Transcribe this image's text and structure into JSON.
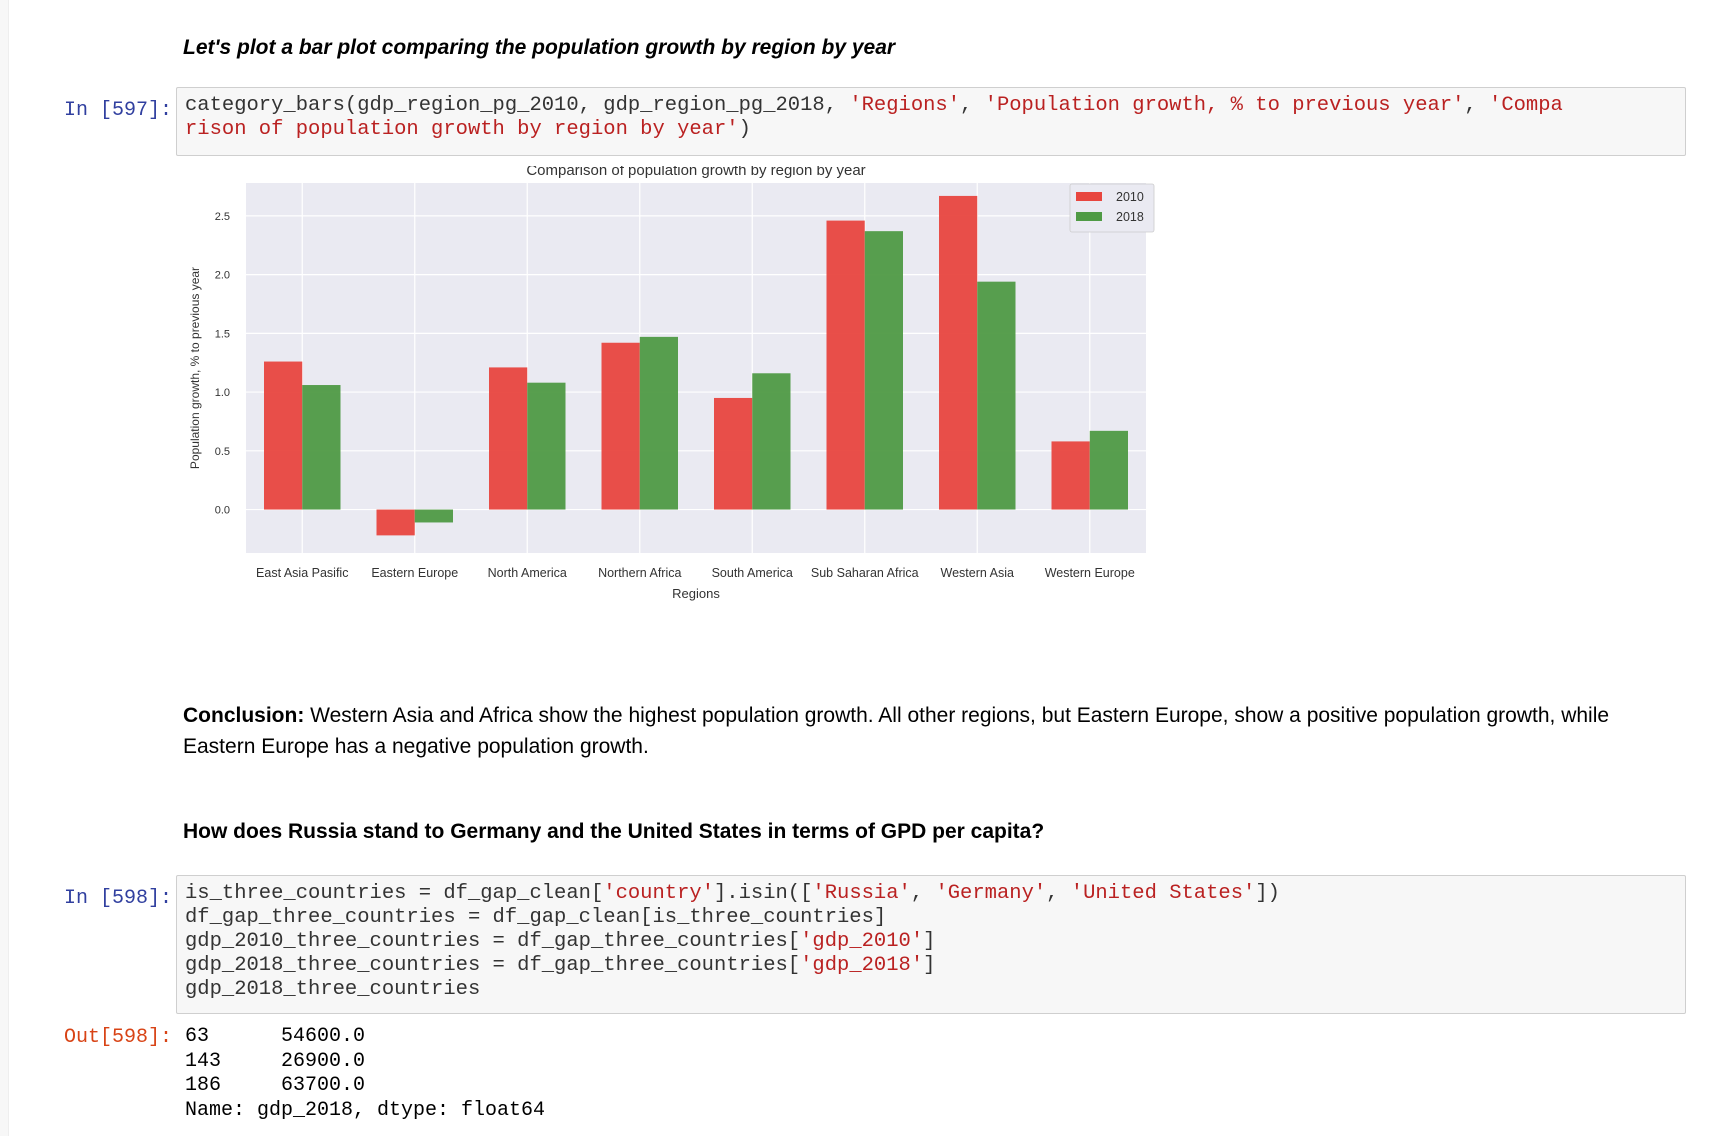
{
  "markdown": {
    "plot_heading": "Let's plot a bar plot comparing the population growth by region by year",
    "conclusion_label": "Conclusion:",
    "conclusion_text": " Western Asia and Africa show the highest population growth. All other regions, but Eastern Europe, show a positive population growth, while Eastern Europe has a negative population growth.",
    "question_heading": "How does Russia stand to Germany and the United States in terms of GPD per capita?"
  },
  "cell1": {
    "prompt": "In [597]:",
    "code_lines": [
      [
        {
          "t": "category_bars(gdp_region_pg_2010, gdp_region_pg_2018, "
        },
        {
          "t": "'Regions'",
          "s": true
        },
        {
          "t": ", "
        },
        {
          "t": "'Population growth, % to previous year'",
          "s": true
        },
        {
          "t": ", "
        },
        {
          "t": "'Compa",
          "s": true
        }
      ],
      [
        {
          "t": "rison of population growth by region by year'",
          "s": true
        },
        {
          "t": ")"
        }
      ]
    ]
  },
  "cell2": {
    "prompt": "In [598]:",
    "code_lines": [
      [
        {
          "t": "is_three_countries = df_gap_clean["
        },
        {
          "t": "'country'",
          "s": true
        },
        {
          "t": "].isin(["
        },
        {
          "t": "'Russia'",
          "s": true
        },
        {
          "t": ", "
        },
        {
          "t": "'Germany'",
          "s": true
        },
        {
          "t": ", "
        },
        {
          "t": "'United States'",
          "s": true
        },
        {
          "t": "])"
        }
      ],
      [
        {
          "t": "df_gap_three_countries = df_gap_clean[is_three_countries]"
        }
      ],
      [
        {
          "t": "gdp_2010_three_countries = df_gap_three_countries["
        },
        {
          "t": "'gdp_2010'",
          "s": true
        },
        {
          "t": "]"
        }
      ],
      [
        {
          "t": "gdp_2018_three_countries = df_gap_three_countries["
        },
        {
          "t": "'gdp_2018'",
          "s": true
        },
        {
          "t": "]"
        }
      ],
      [
        {
          "t": "gdp_2018_three_countries"
        }
      ]
    ],
    "out_prompt": "Out[598]:",
    "output_lines": [
      "63      54600.0",
      "143     26900.0",
      "186     63700.0",
      "Name: gdp_2018, dtype: float64"
    ]
  },
  "colors": {
    "series_2010": "#e8463f",
    "series_2018": "#4f9a45",
    "plot_bg": "#eaeaf2",
    "grid": "#ffffff"
  },
  "chart_data": {
    "type": "bar",
    "title": "Comparison of population growth by region by year",
    "xlabel": "Regions",
    "ylabel": "Population growth, % to previous year",
    "categories": [
      "East Asia Pasific",
      "Eastern Europe",
      "North America",
      "Northern Africa",
      "South America",
      "Sub Saharan Africa",
      "Western Asia",
      "Western Europe"
    ],
    "series": [
      {
        "name": "2010",
        "values": [
          1.26,
          -0.22,
          1.21,
          1.42,
          0.95,
          2.46,
          2.67,
          0.58
        ]
      },
      {
        "name": "2018",
        "values": [
          1.06,
          -0.11,
          1.08,
          1.47,
          1.16,
          2.37,
          1.94,
          0.67
        ]
      }
    ],
    "yticks": [
      "0.0",
      "0.5",
      "1.0",
      "1.5",
      "2.0",
      "2.5"
    ],
    "ylim": [
      -0.37,
      2.78
    ],
    "grid": true,
    "legend": "top-right"
  }
}
